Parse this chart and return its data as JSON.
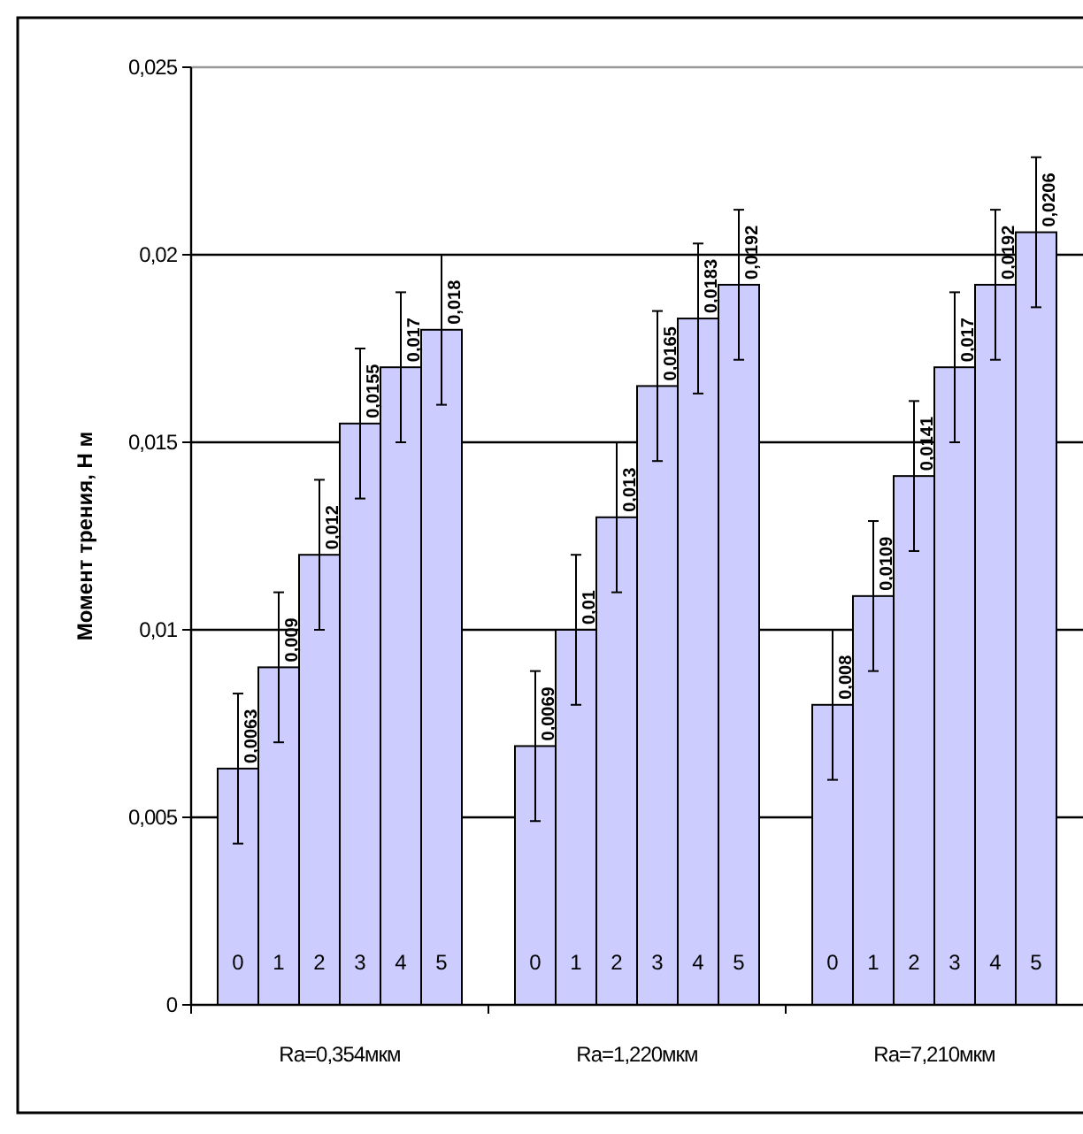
{
  "chart_data": {
    "type": "bar",
    "ylabel": "Момент трения, Н м",
    "categories": [
      "Ra=0,354мкм",
      "Ra=1,220мкм",
      "Ra=7,210мкм"
    ],
    "ylim": [
      0,
      0.025
    ],
    "yticks": [
      {
        "value": 0,
        "label": "0"
      },
      {
        "value": 0.005,
        "label": "0,005"
      },
      {
        "value": 0.01,
        "label": "0,01"
      },
      {
        "value": 0.015,
        "label": "0,015"
      },
      {
        "value": 0.02,
        "label": "0,02"
      },
      {
        "value": 0.025,
        "label": "0,025"
      }
    ],
    "grid": "y",
    "legend": false,
    "series": [
      {
        "name": "0",
        "color": "#ccccff",
        "values": [
          0.0063,
          0.0069,
          0.008
        ],
        "errors": [
          0.002,
          0.002,
          0.002
        ],
        "value_labels": [
          "0,0063",
          "0,0069",
          "0,008"
        ]
      },
      {
        "name": "1",
        "color": "#ccccff",
        "values": [
          0.009,
          0.01,
          0.0109
        ],
        "errors": [
          0.002,
          0.002,
          0.002
        ],
        "value_labels": [
          "0,009",
          "0,01",
          "0,0109"
        ]
      },
      {
        "name": "2",
        "color": "#ccccff",
        "values": [
          0.012,
          0.013,
          0.0141
        ],
        "errors": [
          0.002,
          0.002,
          0.002
        ],
        "value_labels": [
          "0,012",
          "0,013",
          "0,0141"
        ]
      },
      {
        "name": "3",
        "color": "#ccccff",
        "values": [
          0.0155,
          0.0165,
          0.017
        ],
        "errors": [
          0.002,
          0.002,
          0.002
        ],
        "value_labels": [
          "0,0155",
          "0,0165",
          "0,017"
        ]
      },
      {
        "name": "4",
        "color": "#ccccff",
        "values": [
          0.017,
          0.0183,
          0.0192
        ],
        "errors": [
          0.002,
          0.002,
          0.002
        ],
        "value_labels": [
          "0,017",
          "0,0183",
          "0,0192"
        ]
      },
      {
        "name": "5",
        "color": "#ccccff",
        "values": [
          0.018,
          0.0192,
          0.0206
        ],
        "errors": [
          0.002,
          0.002,
          0.002
        ],
        "value_labels": [
          "0,018",
          "0,0192",
          "0,0206"
        ]
      }
    ]
  }
}
